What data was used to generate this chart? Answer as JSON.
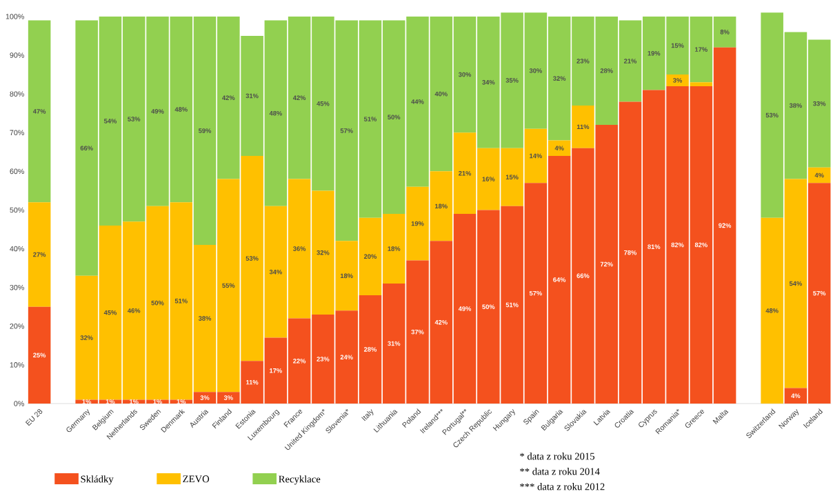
{
  "chart_data": {
    "type": "bar",
    "stacked": true,
    "categories": [
      "EU 28",
      null,
      "Germany",
      "Belgium",
      "Netherlands",
      "Sweden",
      "Denmark",
      "Austria",
      "Finland",
      "Estonia",
      "Luxembourg",
      "France",
      "United Kingdom*",
      "Slovenia*",
      "Italy",
      "Lithuania",
      "Poland",
      "Ireland***",
      "Portugal**",
      "Czech Republic",
      "Hungary",
      "Spain",
      "Bulgaria",
      "Slovakia",
      "Latvia",
      "Croatia",
      "Cyprus",
      "Romania*",
      "Greece",
      "Malta",
      null,
      "Switzerland",
      "Norway",
      "Iceland"
    ],
    "series": [
      {
        "name": "Skládky",
        "color": "#f4511e",
        "values": [
          25,
          null,
          1,
          1,
          1,
          1,
          1,
          3,
          3,
          11,
          17,
          22,
          23,
          24,
          28,
          31,
          37,
          42,
          49,
          50,
          51,
          57,
          64,
          66,
          72,
          78,
          81,
          82,
          82,
          92,
          null,
          0,
          4,
          57
        ],
        "value_labels": [
          "25%",
          null,
          "1%",
          "1%",
          "1%",
          "1%",
          "1%",
          "3%",
          "3%",
          "11%",
          "17%",
          "22%",
          "23%",
          "24%",
          "28%",
          "31%",
          "37%",
          "42%",
          "49%",
          "50%",
          "51%",
          "57%",
          "64%",
          "66%",
          "72%",
          "78%",
          "81%",
          "82%",
          "82%",
          "92%",
          null,
          null,
          "4%",
          "57%"
        ]
      },
      {
        "name": "ZEVO",
        "color": "#ffc000",
        "values": [
          27,
          null,
          32,
          45,
          46,
          50,
          51,
          38,
          55,
          53,
          34,
          36,
          32,
          18,
          20,
          18,
          19,
          18,
          21,
          16,
          15,
          14,
          4,
          11,
          0,
          0,
          0,
          3,
          1,
          0,
          null,
          48,
          54,
          4
        ],
        "value_labels": [
          "27%",
          null,
          "32%",
          "45%",
          "46%",
          "50%",
          "51%",
          "38%",
          "55%",
          "53%",
          "34%",
          "36%",
          "32%",
          "18%",
          "20%",
          "18%",
          "19%",
          "18%",
          "21%",
          "16%",
          "15%",
          "14%",
          "4%",
          "11%",
          null,
          null,
          null,
          "3%",
          null,
          null,
          null,
          "48%",
          "54%",
          "4%"
        ]
      },
      {
        "name": "Recyklace",
        "color": "#92d050",
        "values": [
          47,
          null,
          66,
          54,
          53,
          49,
          48,
          59,
          42,
          31,
          48,
          42,
          45,
          57,
          51,
          50,
          44,
          40,
          30,
          34,
          35,
          30,
          32,
          23,
          28,
          21,
          19,
          15,
          17,
          8,
          null,
          53,
          38,
          33
        ],
        "value_labels": [
          "47%",
          null,
          "66%",
          "54%",
          "53%",
          "49%",
          "48%",
          "59%",
          "42%",
          "31%",
          "48%",
          "42%",
          "45%",
          "57%",
          "51%",
          "50%",
          "44%",
          "40%",
          "30%",
          "34%",
          "35%",
          "30%",
          "32%",
          "23%",
          "28%",
          "21%",
          "19%",
          "15%",
          "17%",
          "8%",
          null,
          "53%",
          "38%",
          "33%"
        ]
      }
    ],
    "ylim": [
      0,
      101
    ],
    "yticks": [
      {
        "value": 0,
        "label": "0%"
      },
      {
        "value": 10,
        "label": "10%"
      },
      {
        "value": 20,
        "label": "20%"
      },
      {
        "value": 30,
        "label": "30%"
      },
      {
        "value": 40,
        "label": "40%"
      },
      {
        "value": 50,
        "label": "50%"
      },
      {
        "value": 60,
        "label": "60%"
      },
      {
        "value": 70,
        "label": "70%"
      },
      {
        "value": 80,
        "label": "80%"
      },
      {
        "value": 90,
        "label": "90%"
      },
      {
        "value": 100,
        "label": "100%"
      }
    ],
    "legend": "bottom left",
    "annotations": [
      "* data z roku 2015",
      "** data z roku 2014",
      "*** data z roku 2012"
    ]
  }
}
